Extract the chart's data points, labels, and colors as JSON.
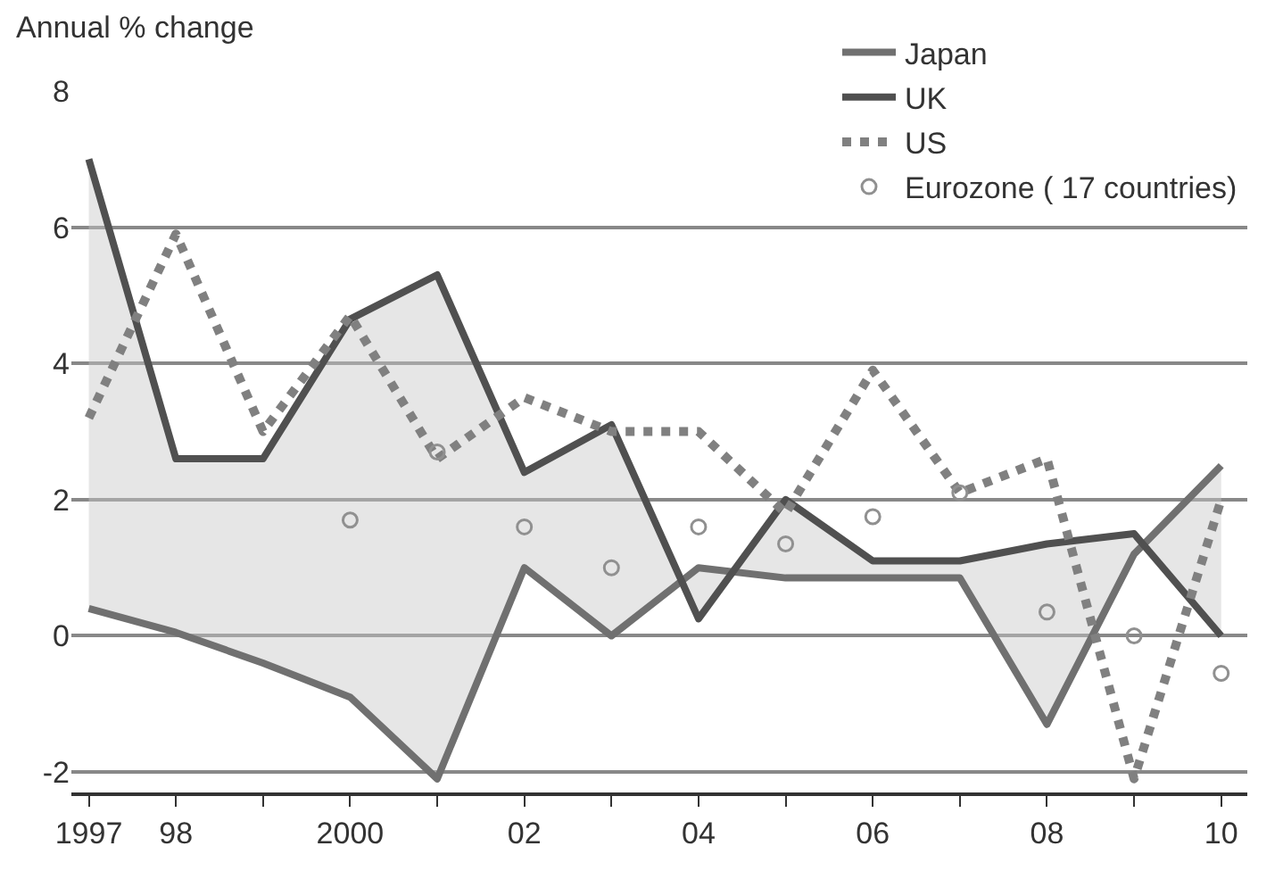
{
  "chart_data": {
    "type": "line",
    "ylabel": "Annual % change",
    "x": [
      1997,
      1998,
      1999,
      2000,
      2001,
      2002,
      2003,
      2004,
      2005,
      2006,
      2007,
      2008,
      2009,
      2010
    ],
    "xlim": [
      1996.8,
      2010.3
    ],
    "xticks": [
      {
        "value": 1997,
        "label": "1997"
      },
      {
        "value": 1998,
        "label": "98"
      },
      {
        "value": 1999,
        "label": null
      },
      2000,
      {
        "value": 2001,
        "label": null
      },
      {
        "value": 2002,
        "label": "02"
      },
      {
        "value": 2003,
        "label": null
      },
      {
        "value": 2004,
        "label": "04"
      },
      {
        "value": 2005,
        "label": null
      },
      {
        "value": 2006,
        "label": "06"
      },
      {
        "value": 2007,
        "label": null
      },
      {
        "value": 2008,
        "label": "08"
      },
      {
        "value": 2009,
        "label": null
      },
      {
        "value": 2010,
        "label": "10"
      }
    ],
    "ylim": [
      -2.3,
      8
    ],
    "yticks": [
      -2,
      0,
      2,
      4,
      6,
      8
    ],
    "grid": "y",
    "legend": "top right",
    "series": [
      {
        "name": "Japan",
        "color": "#707070",
        "line_style": "solid",
        "values": [
          0.4,
          0.05,
          -0.4,
          -0.9,
          -2.1,
          1.0,
          0.0,
          1.0,
          0.85,
          0.85,
          0.85,
          -1.3,
          1.2,
          2.5
        ]
      },
      {
        "name": "UK",
        "color": "#505050",
        "line_style": "solid",
        "values": [
          7.0,
          2.6,
          2.6,
          4.65,
          5.3,
          2.4,
          3.1,
          0.25,
          2.0,
          1.1,
          1.1,
          1.35,
          1.5,
          0.0
        ],
        "lower": [
          0.4,
          0.05,
          -0.4,
          -0.9,
          -2.1,
          1.0,
          0.0,
          1.0,
          0.85,
          0.85,
          0.85,
          -1.3,
          1.2,
          2.5
        ],
        "upper": [
          7.0,
          2.6,
          2.6,
          4.65,
          5.3,
          2.4,
          3.1,
          0.25,
          2.0,
          1.1,
          1.1,
          1.35,
          1.5,
          0.0
        ]
      },
      {
        "name": "US",
        "color": "#808080",
        "line_style": "dotted",
        "values": [
          3.2,
          5.9,
          3.0,
          4.7,
          2.6,
          3.5,
          3.0,
          3.0,
          1.8,
          3.9,
          2.1,
          2.6,
          -2.1,
          2.0
        ]
      },
      {
        "name": "Eurozone ( 17 countries)",
        "color": "#909090",
        "type": "scatter",
        "marker": "circle",
        "x": [
          2000,
          2001,
          2002,
          2003,
          2004,
          2005,
          2006,
          2007,
          2008,
          2009,
          2010
        ],
        "values": [
          1.7,
          2.7,
          1.6,
          1.0,
          1.6,
          1.35,
          1.75,
          2.1,
          0.35,
          0.0,
          -0.55
        ]
      }
    ]
  }
}
